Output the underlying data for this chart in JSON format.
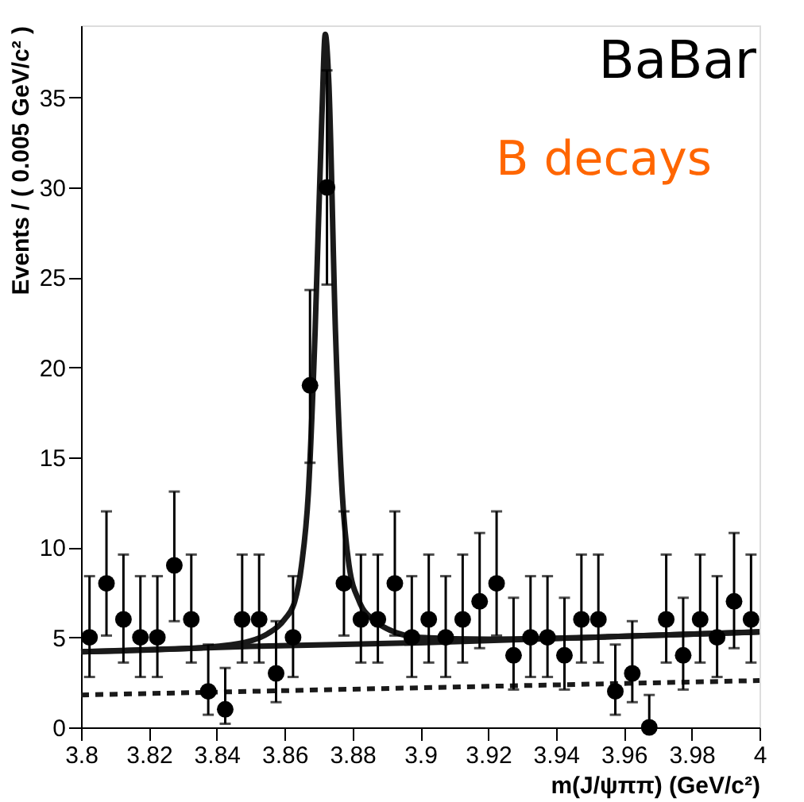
{
  "chart_data": {
    "type": "scatter",
    "xlabel": "m(J/ψππ) (GeV/c²)",
    "ylabel": "Events / ( 0.005 GeV/c² )",
    "annotations": [
      "BaBar",
      "B decays"
    ],
    "xlim": [
      3.8,
      4.0
    ],
    "xticks": [
      3.8,
      3.82,
      3.84,
      3.86,
      3.88,
      3.9,
      3.92,
      3.94,
      3.96,
      3.98,
      4
    ],
    "ylim": [
      0,
      39
    ],
    "yticks": [
      0,
      5,
      10,
      15,
      20,
      25,
      30,
      35
    ],
    "grid": false,
    "series": [
      {
        "color": "#000000",
        "marker": "circle",
        "x": [
          3.8025,
          3.8075,
          3.8125,
          3.8175,
          3.8225,
          3.8275,
          3.8325,
          3.8375,
          3.8425,
          3.8475,
          3.8525,
          3.8575,
          3.8625,
          3.8675,
          3.8725,
          3.8775,
          3.8825,
          3.8875,
          3.8925,
          3.8975,
          3.9025,
          3.9075,
          3.9125,
          3.9175,
          3.9225,
          3.9275,
          3.9325,
          3.9375,
          3.9425,
          3.9475,
          3.9525,
          3.9575,
          3.9625,
          3.9675,
          3.9725,
          3.9775,
          3.9825,
          3.9875,
          3.9925,
          3.9975
        ],
        "values": [
          5,
          8,
          6,
          5,
          5,
          9,
          6,
          2,
          1,
          6,
          6,
          3,
          5,
          19,
          30,
          8,
          6,
          6,
          8,
          5,
          6,
          5,
          6,
          7,
          8,
          4,
          5,
          5,
          4,
          6,
          6,
          2,
          3,
          0,
          6,
          4,
          6,
          5,
          7,
          6
        ],
        "errors": [
          [
            2.8,
            8.4
          ],
          [
            5.1,
            12
          ],
          [
            3.6,
            9.6
          ],
          [
            2.8,
            8.4
          ],
          [
            2.8,
            8.4
          ],
          [
            5.9,
            13.1
          ],
          [
            3.6,
            9.6
          ],
          [
            0.7,
            4.6
          ],
          [
            0.2,
            3.3
          ],
          [
            3.6,
            9.6
          ],
          [
            3.6,
            9.6
          ],
          [
            1.4,
            5.9
          ],
          [
            2.8,
            8.4
          ],
          [
            14.7,
            24.3
          ],
          [
            24.6,
            36.5
          ],
          [
            5.1,
            12
          ],
          [
            3.6,
            9.6
          ],
          [
            3.6,
            9.6
          ],
          [
            5.1,
            12
          ],
          [
            2.8,
            8.4
          ],
          [
            3.6,
            9.6
          ],
          [
            2.8,
            8.4
          ],
          [
            3.6,
            9.6
          ],
          [
            4.4,
            10.8
          ],
          [
            5.1,
            12
          ],
          [
            2.1,
            7.2
          ],
          [
            2.8,
            8.4
          ],
          [
            2.8,
            8.4
          ],
          [
            2.1,
            7.2
          ],
          [
            3.6,
            9.6
          ],
          [
            3.6,
            9.6
          ],
          [
            0.7,
            4.6
          ],
          [
            1.4,
            5.9
          ],
          [
            0,
            1.8
          ],
          [
            3.6,
            9.6
          ],
          [
            2.1,
            7.2
          ],
          [
            3.6,
            9.6
          ],
          [
            2.8,
            8.4
          ],
          [
            4.4,
            10.8
          ],
          [
            3.6,
            9.6
          ]
        ]
      },
      {
        "type": "line",
        "color": "#1a1a1a",
        "line_style": "solid",
        "x": [
          3.8,
          3.82,
          3.84,
          3.85,
          3.855,
          3.86,
          3.863,
          3.865,
          3.867,
          3.869,
          3.871,
          3.872,
          3.873,
          3.875,
          3.877,
          3.879,
          3.882,
          3.886,
          3.89,
          3.9,
          3.92,
          3.95,
          4.0
        ],
        "values": [
          4.2,
          4.3,
          4.5,
          4.8,
          5.2,
          6,
          7,
          9,
          13,
          22,
          34,
          38.5,
          36,
          22,
          13,
          9,
          7,
          6,
          5.5,
          5.0,
          4.9,
          5.0,
          5.3
        ]
      },
      {
        "type": "line",
        "color": "#1a1a1a",
        "line_style": "solid",
        "x": [
          3.8,
          3.85,
          3.9,
          3.95,
          4.0
        ],
        "values": [
          4.2,
          4.5,
          4.7,
          5.0,
          5.3
        ]
      },
      {
        "type": "line",
        "color": "#1a1a1a",
        "line_style": "dashed",
        "x": [
          3.8,
          3.85,
          3.9,
          3.95,
          4.0
        ],
        "values": [
          1.8,
          2.0,
          2.2,
          2.4,
          2.6
        ]
      }
    ]
  }
}
